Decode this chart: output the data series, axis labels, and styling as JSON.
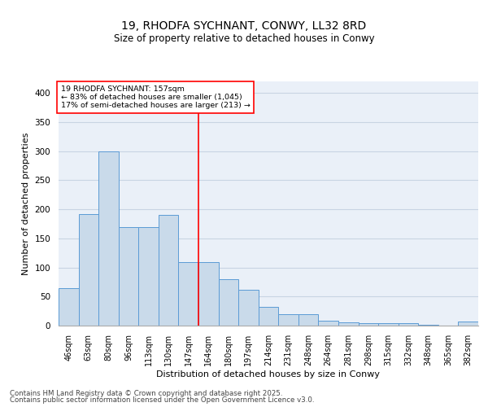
{
  "title1": "19, RHODFA SYCHNANT, CONWY, LL32 8RD",
  "title2": "Size of property relative to detached houses in Conwy",
  "xlabel": "Distribution of detached houses by size in Conwy",
  "ylabel": "Number of detached properties",
  "categories": [
    "46sqm",
    "63sqm",
    "80sqm",
    "96sqm",
    "113sqm",
    "130sqm",
    "147sqm",
    "164sqm",
    "180sqm",
    "197sqm",
    "214sqm",
    "231sqm",
    "248sqm",
    "264sqm",
    "281sqm",
    "298sqm",
    "315sqm",
    "332sqm",
    "348sqm",
    "365sqm",
    "382sqm"
  ],
  "values": [
    65,
    192,
    300,
    170,
    170,
    190,
    109,
    109,
    80,
    62,
    32,
    20,
    20,
    9,
    6,
    4,
    4,
    4,
    1,
    0,
    7
  ],
  "bar_color": "#c9daea",
  "bar_edge_color": "#5b9bd5",
  "vline_color": "red",
  "annotation_text": "19 RHODFA SYCHNANT: 157sqm\n← 83% of detached houses are smaller (1,045)\n17% of semi-detached houses are larger (213) →",
  "ylim": [
    0,
    420
  ],
  "yticks": [
    0,
    50,
    100,
    150,
    200,
    250,
    300,
    350,
    400
  ],
  "grid_color": "#c8d4e3",
  "bg_color": "#eaf0f8",
  "footer1": "Contains HM Land Registry data © Crown copyright and database right 2025.",
  "footer2": "Contains public sector information licensed under the Open Government Licence v3.0."
}
